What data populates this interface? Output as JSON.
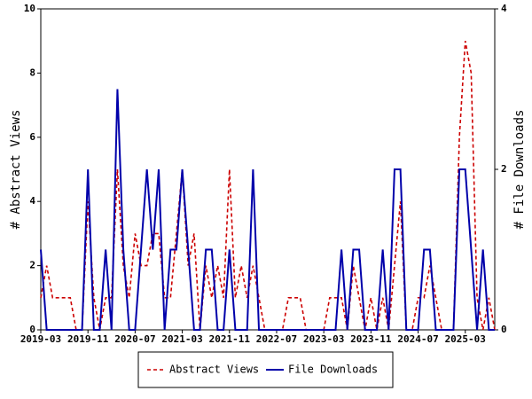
{
  "chart_data": {
    "type": "line",
    "ylabel": "# Abstract Views",
    "y2label": "# File Downloads",
    "categories": [
      "2019-03",
      null,
      null,
      null,
      null,
      null,
      null,
      null,
      "2019-11",
      null,
      null,
      null,
      null,
      null,
      null,
      null,
      "2020-07",
      null,
      null,
      null,
      null,
      null,
      null,
      null,
      "2021-03",
      null,
      null,
      null,
      null,
      null,
      null,
      null,
      "2021-11",
      null,
      null,
      null,
      null,
      null,
      null,
      null,
      "2022-07",
      null,
      null,
      null,
      null,
      null,
      null,
      null,
      "2023-03",
      null,
      null,
      null,
      null,
      null,
      null,
      null,
      "2023-11",
      null,
      null,
      null,
      null,
      null,
      null,
      null,
      "2024-07",
      null,
      null,
      null,
      null,
      null,
      null,
      null,
      "2025-03",
      null,
      null,
      null,
      null,
      null
    ],
    "series": [
      {
        "name": "Abstract Views",
        "color": "#cc0000",
        "dashed": true,
        "values": [
          1,
          2,
          1,
          1,
          1,
          1,
          0,
          0,
          4,
          1,
          0,
          1,
          1,
          5,
          2,
          1,
          3,
          2,
          2,
          3,
          3,
          1,
          1,
          3,
          5,
          2,
          3,
          0,
          2,
          1,
          2,
          1,
          5,
          1,
          2,
          1,
          2,
          1,
          0,
          0,
          0,
          0,
          1,
          1,
          1,
          0,
          0,
          0,
          0,
          1,
          1,
          1,
          0,
          2,
          1,
          0,
          1,
          0,
          1,
          0,
          2,
          4,
          0,
          0,
          1,
          1,
          2,
          1,
          0,
          0,
          0,
          6,
          9,
          8,
          1,
          0,
          1,
          0
        ]
      },
      {
        "name": "File Downloads",
        "color": "#0000aa",
        "axis": "y2",
        "values": [
          1,
          0,
          0,
          0,
          0,
          0,
          0,
          0,
          2,
          0,
          0,
          1,
          0,
          3,
          1,
          0,
          0,
          1,
          2,
          1,
          2,
          0,
          1,
          1,
          2,
          1,
          0,
          0,
          1,
          1,
          0,
          0,
          1,
          0,
          0,
          0,
          2,
          0,
          0,
          0,
          0,
          0,
          0,
          0,
          0,
          0,
          0,
          0,
          0,
          0,
          0,
          1,
          0,
          1,
          1,
          0,
          0,
          0,
          1,
          0,
          2,
          2,
          0,
          0,
          0,
          1,
          1,
          0,
          0,
          0,
          0,
          2,
          2,
          1,
          0,
          1,
          0,
          0
        ]
      }
    ],
    "ylim": [
      0,
      10
    ],
    "yticks": [
      0,
      2,
      4,
      6,
      8,
      10
    ],
    "y2lim": [
      0,
      4
    ],
    "y2ticks": [
      0,
      2,
      4
    ],
    "legend": "bottom"
  }
}
